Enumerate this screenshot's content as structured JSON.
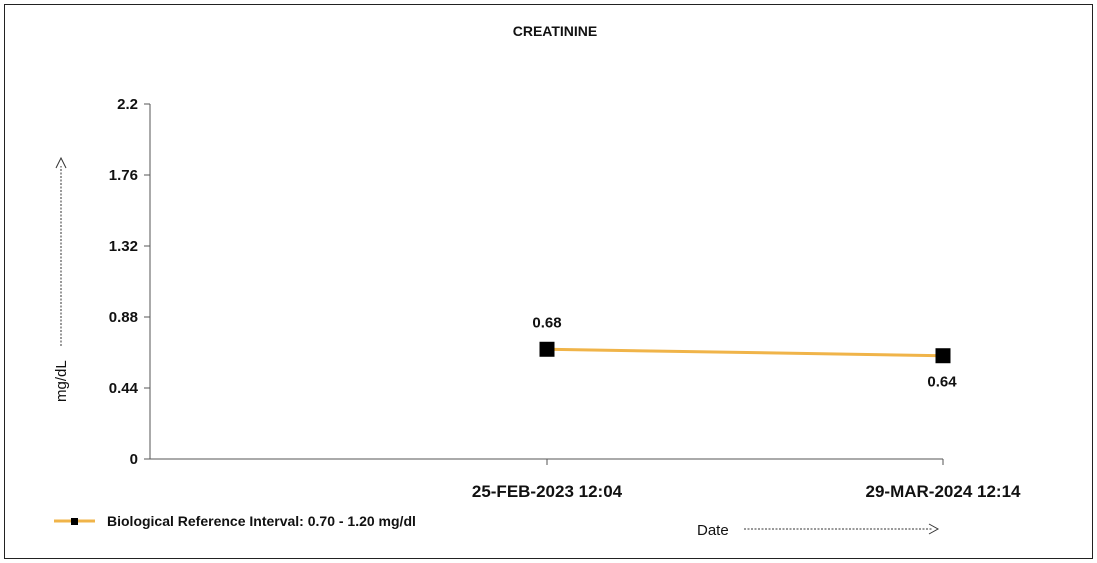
{
  "chart_data": {
    "type": "line",
    "title": "CREATININE",
    "xlabel": "Date",
    "ylabel": "mg/dL",
    "x": [
      "25-FEB-2023 12:04",
      "29-MAR-2024 12:14"
    ],
    "y_ticks": [
      "0",
      "0.44",
      "0.88",
      "1.32",
      "1.76",
      "2.2"
    ],
    "ylim": [
      0,
      2.2
    ],
    "series": [
      {
        "name": "Biological Reference Interval: 0.70 - 1.20 mg/dl",
        "values": [
          0.68,
          0.64
        ],
        "labels": [
          "0.68",
          "0.64"
        ],
        "color": "#f0b449",
        "marker": "square"
      }
    ],
    "legend": "bottom-left",
    "grid": false
  }
}
